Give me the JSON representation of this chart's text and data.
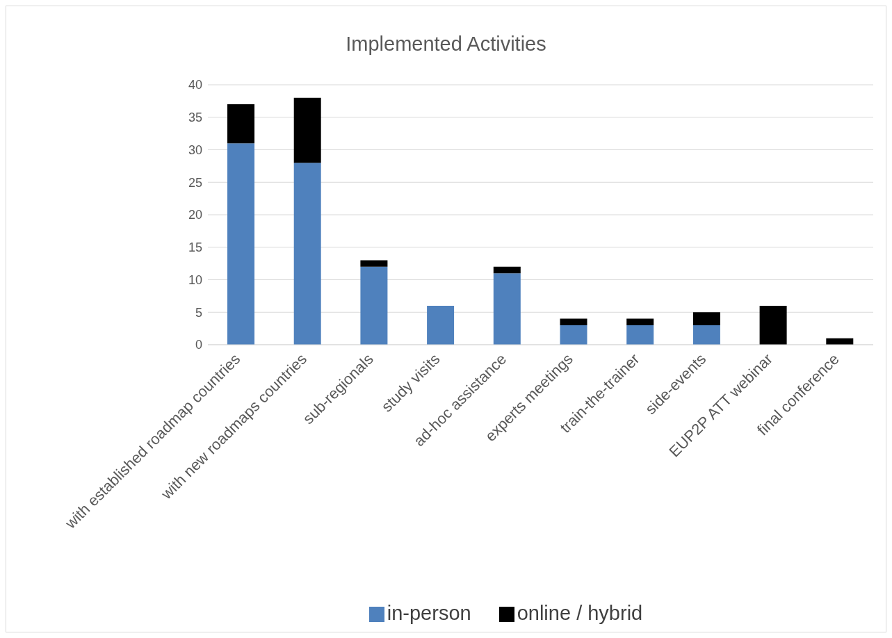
{
  "chart_data": {
    "type": "bar",
    "title": "Implemented Activities",
    "stacked": true,
    "categories": [
      "with established roadmap countries",
      "with new roadmaps countries",
      "sub-regionals",
      "study visits",
      "ad-hoc assistance",
      "experts meetings",
      "train-the-trainer",
      "side-events",
      "EUP2P ATT webinar",
      "final conference"
    ],
    "series": [
      {
        "name": "in-person",
        "color": "#4f81bd",
        "values": [
          31,
          28,
          12,
          6,
          11,
          3,
          3,
          3,
          0,
          0
        ]
      },
      {
        "name": "online / hybrid",
        "color": "#000000",
        "values": [
          6,
          10,
          1,
          0,
          1,
          1,
          1,
          2,
          6,
          1
        ]
      }
    ],
    "ylim": [
      0,
      40
    ],
    "yticks": [
      0,
      5,
      10,
      15,
      20,
      25,
      30,
      35,
      40
    ],
    "grid": "y",
    "legend": "bottom"
  }
}
